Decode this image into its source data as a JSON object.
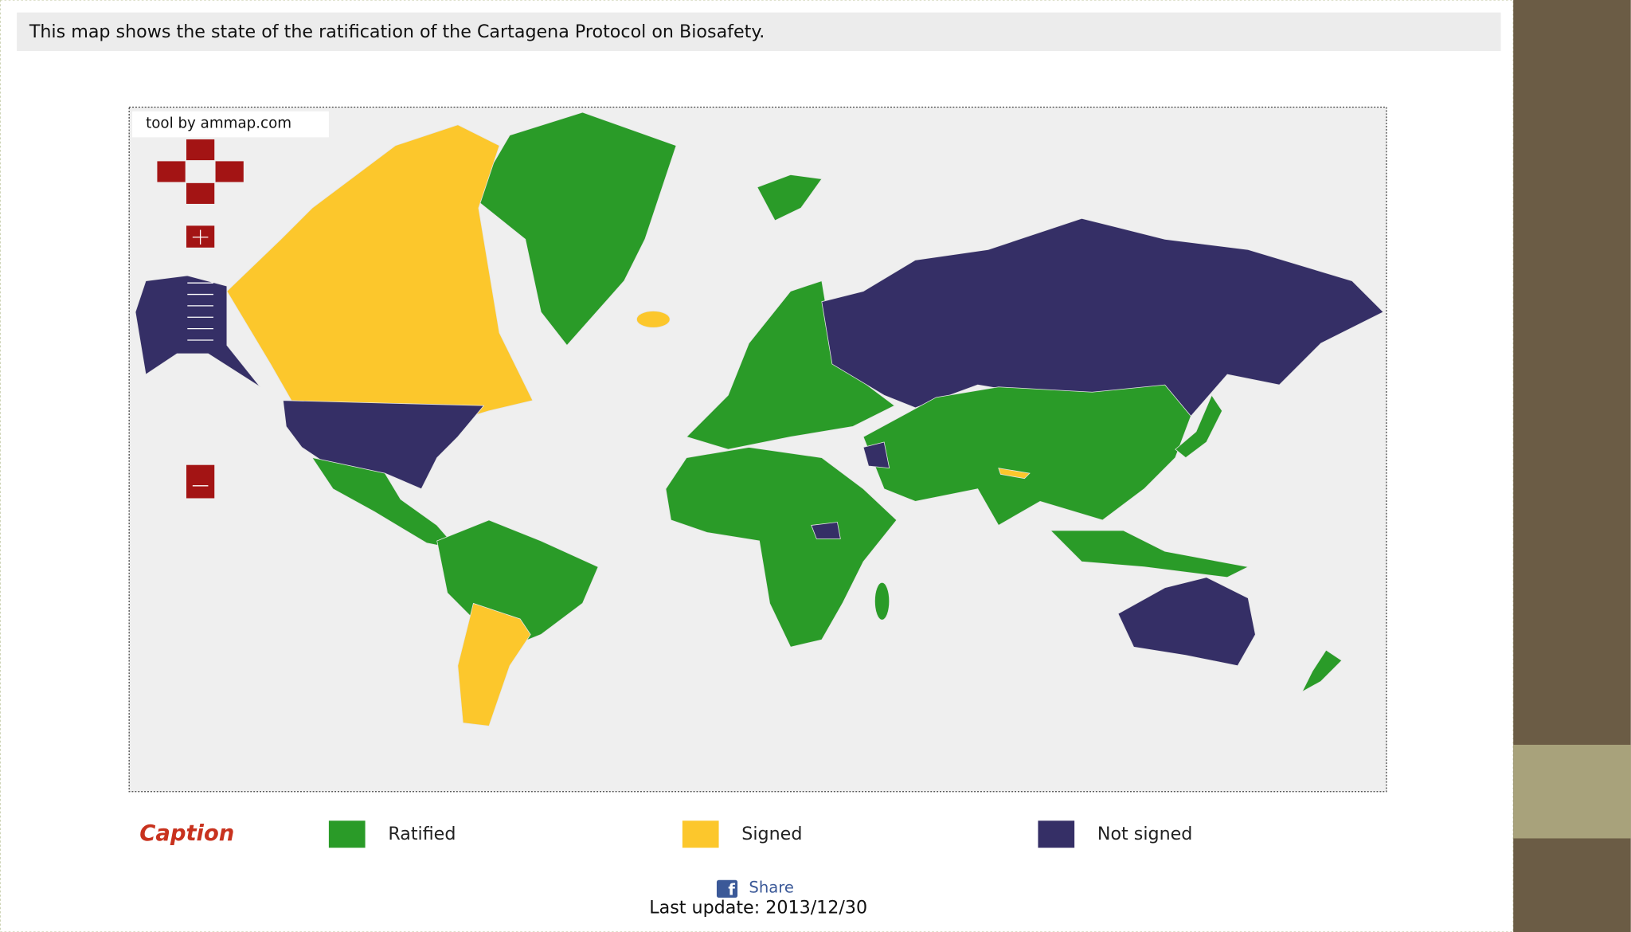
{
  "header": {
    "text": "This map shows the state of the ratification of the Cartagena Protocol on Biosafety."
  },
  "map": {
    "attribution": "tool by ammap.com"
  },
  "legend": {
    "title": "Caption",
    "items": [
      "Ratified",
      "Signed",
      "Not signed"
    ]
  },
  "footer": {
    "share": "Share",
    "last_update": "Last update: 2013/12/30"
  }
}
